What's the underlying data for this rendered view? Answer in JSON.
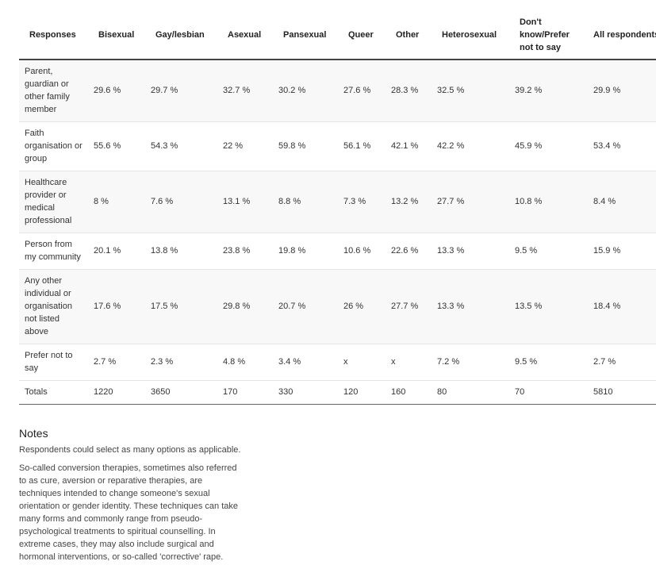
{
  "table": {
    "headers": [
      "Responses",
      "Bisexual",
      "Gay/lesbian",
      "Asexual",
      "Pansexual",
      "Queer",
      "Other",
      "Heterosexual",
      "Don't know/Prefer not to say",
      "All respondents"
    ],
    "rows": [
      [
        "Parent, guardian or other family member",
        "29.6 %",
        "29.7 %",
        "32.7 %",
        "30.2 %",
        "27.6 %",
        "28.3 %",
        "32.5 %",
        "39.2 %",
        "29.9 %"
      ],
      [
        "Faith organisation or group",
        "55.6 %",
        "54.3 %",
        "22 %",
        "59.8 %",
        "56.1 %",
        "42.1 %",
        "42.2 %",
        "45.9 %",
        "53.4 %"
      ],
      [
        "Healthcare provider or medical professional",
        "8 %",
        "7.6 %",
        "13.1 %",
        "8.8 %",
        "7.3 %",
        "13.2 %",
        "27.7 %",
        "10.8 %",
        "8.4 %"
      ],
      [
        "Person from my community",
        "20.1 %",
        "13.8 %",
        "23.8 %",
        "19.8 %",
        "10.6 %",
        "22.6 %",
        "13.3 %",
        "9.5 %",
        "15.9 %"
      ],
      [
        "Any other individual or organisation not listed above",
        "17.6 %",
        "17.5 %",
        "29.8 %",
        "20.7 %",
        "26 %",
        "27.7 %",
        "13.3 %",
        "13.5 %",
        "18.4 %"
      ],
      [
        "Prefer not to say",
        "2.7 %",
        "2.3 %",
        "4.8 %",
        "3.4 %",
        "x",
        "x",
        "7.2 %",
        "9.5 %",
        "2.7 %"
      ],
      [
        "Totals",
        "1220",
        "3650",
        "170",
        "330",
        "120",
        "160",
        "80",
        "70",
        "5810"
      ]
    ]
  },
  "notes": {
    "title": "Notes",
    "paragraphs": [
      "Respondents could select as many options as applicable.",
      "So-called conversion therapies, sometimes also referred to as cure, aversion or reparative therapies, are techniques intended to change someone's sexual orientation or gender identity. These techniques can take many forms and commonly range from pseudo-psychological treatments to spiritual counselling. In extreme cases, they may also include surgical and hormonal interventions, or so-called 'corrective' rape."
    ]
  }
}
